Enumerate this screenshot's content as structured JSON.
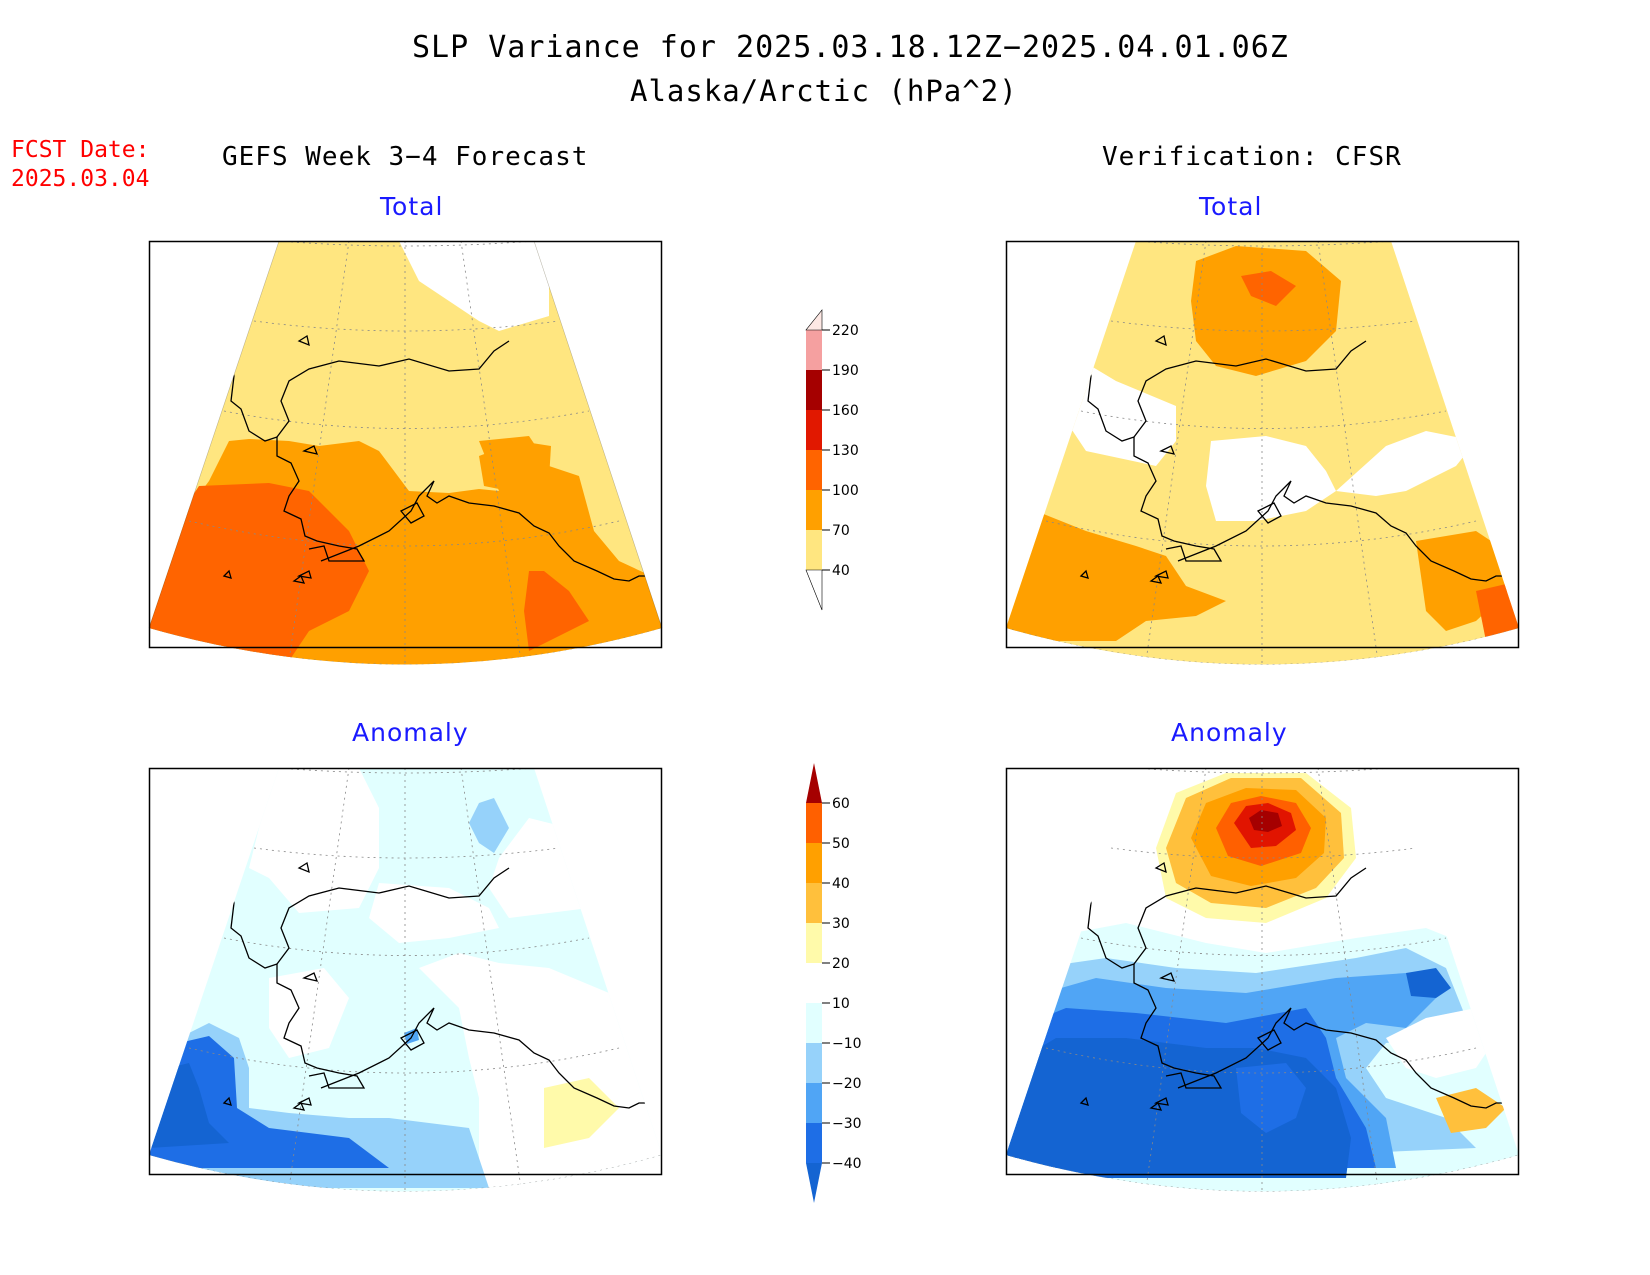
{
  "title": "SLP Variance for 2025.03.18.12Z−2025.04.01.06Z",
  "subtitle": "Alaska/Arctic (hPa^2)",
  "fcst_date": {
    "label": "FCST Date:",
    "value": "2025.03.04"
  },
  "columns": {
    "left": "GEFS Week 3−4 Forecast",
    "right": "Verification: CFSR"
  },
  "panels": {
    "top_left": "Total",
    "top_right": "Total",
    "bottom_left": "Anomaly",
    "bottom_right": "Anomaly"
  },
  "colorbars": {
    "total": {
      "ticks": [
        "40",
        "70",
        "100",
        "130",
        "160",
        "190",
        "220"
      ],
      "colors": [
        "#ffe680",
        "#ffa000",
        "#ff6400",
        "#e11800",
        "#a50000",
        "#f5a0a0",
        "#fde8e4"
      ]
    },
    "anomaly": {
      "ticks": [
        "−40",
        "−30",
        "−20",
        "−10",
        "10",
        "20",
        "30",
        "40",
        "50",
        "60"
      ],
      "colors": [
        "#1464d2",
        "#1e6ee6",
        "#50a5f5",
        "#96d2fa",
        "#e1ffff",
        "#ffffff",
        "#fffaaa",
        "#ffc03c",
        "#ffa000",
        "#ff6000",
        "#e11400",
        "#a50000"
      ]
    }
  }
}
